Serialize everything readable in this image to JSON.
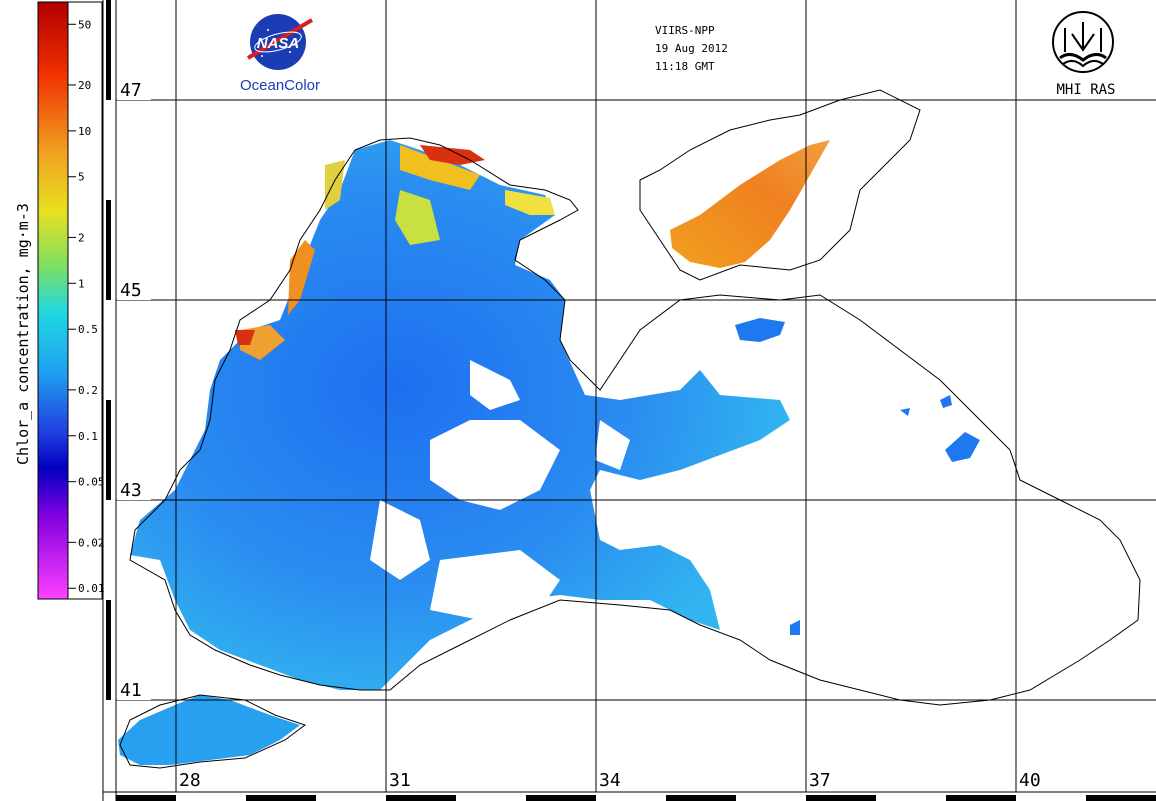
{
  "colorbar": {
    "title": "Chlor_a concentration, mg·m-3",
    "ticks": [
      "50",
      "20",
      "10",
      "5",
      "2",
      "1",
      "0.5",
      "0.2",
      "0.1",
      "0.05",
      "0.02",
      "0.01"
    ],
    "scale": "log"
  },
  "header": {
    "sensor": "VIIRS-NPP",
    "date": "19 Aug 2012",
    "time": "11:18 GMT"
  },
  "logos": {
    "nasa": {
      "word": "NASA",
      "caption": "OceanColor"
    },
    "mhi": {
      "caption": "MHI RAS"
    }
  },
  "grid": {
    "latitudes": [
      "47",
      "45",
      "43",
      "41"
    ],
    "longitudes": [
      "28",
      "31",
      "34",
      "37",
      "40"
    ]
  },
  "colors": {
    "land_outline": "#000000",
    "low_chl": "#1e78f0",
    "mid_chl": "#1ec8f0",
    "high_chl": "#f0a01e",
    "very_high_chl": "#dc2814"
  }
}
